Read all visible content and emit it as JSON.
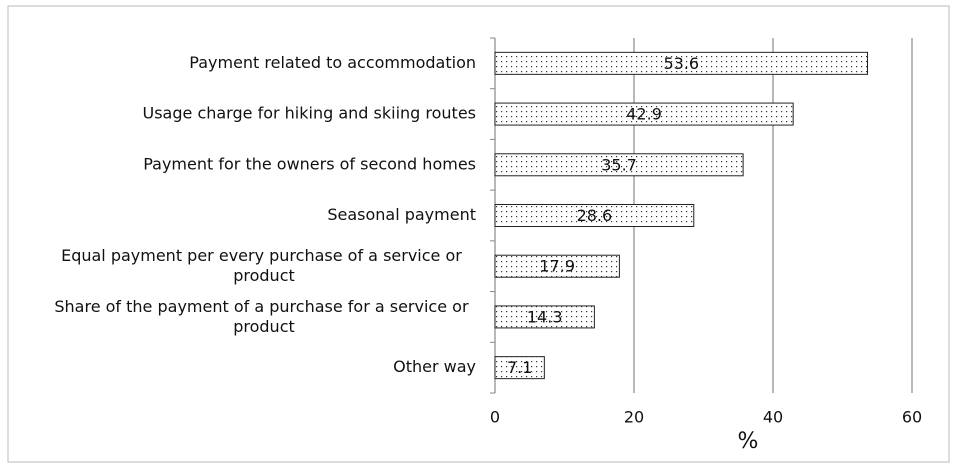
{
  "chart_data": {
    "type": "bar",
    "orientation": "horizontal",
    "categories": [
      "Payment related to accommodation",
      "Usage charge for hiking and skiing routes",
      "Payment for the owners of second homes",
      "Seasonal payment",
      "Equal payment per every purchase of a service or product",
      "Share of the payment of a purchase for a service or product",
      "Other way"
    ],
    "values": [
      53.6,
      42.9,
      35.7,
      28.6,
      17.9,
      14.3,
      7.1
    ],
    "xlabel": "%",
    "xlim": [
      0,
      60
    ],
    "xticks": [
      0,
      20,
      40,
      60
    ],
    "grid": true
  }
}
